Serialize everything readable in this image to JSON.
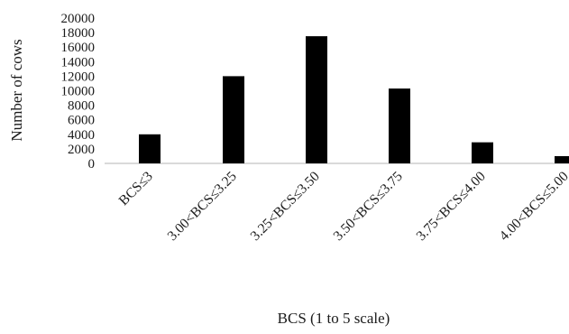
{
  "chart_data": {
    "type": "bar",
    "categories": [
      "BCS≤3",
      "3.00<BCS≤3.25",
      "3.25<BCS≤3.50",
      "3.50<BCS≤3.75",
      "3.75<BCS≤4.00",
      "4.00<BCS≤5.00"
    ],
    "values": [
      4000,
      12000,
      17500,
      10300,
      2900,
      1000
    ],
    "yticks": [
      "0",
      "2000",
      "4000",
      "6000",
      "8000",
      "10000",
      "12000",
      "14000",
      "16000",
      "18000",
      "20000"
    ],
    "ylim": [
      0,
      20000
    ],
    "title": "",
    "xlabel": "BCS (1 to 5 scale)",
    "ylabel": "Number of cows",
    "grid": false,
    "legend": "none",
    "bar_color": "#000000"
  }
}
